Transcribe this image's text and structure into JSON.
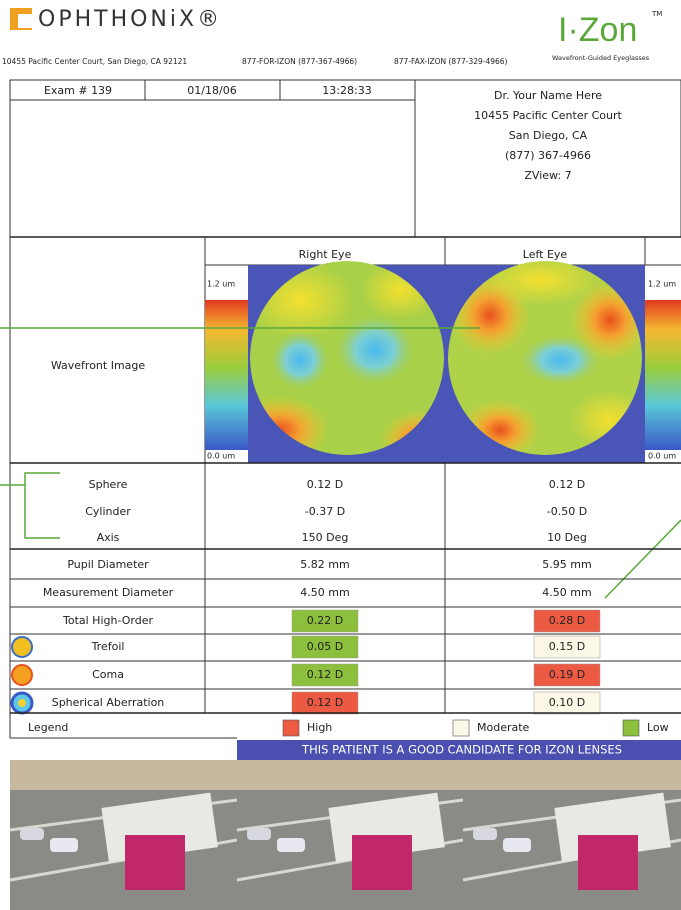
{
  "header": {
    "brand": "OPHTHONiX®",
    "address": "10455 Pacific Center Court, San Diego, CA 92121",
    "phone": "877-FOR-IZON (877-367-4966)",
    "fax": "877-FAX-IZON (877-329-4966)",
    "logo": "I·Zon",
    "logo_mark": "TM",
    "tagline": "Wavefront-Guided Eyeglasses"
  },
  "exam": {
    "number": "Exam # 139",
    "date": "01/18/06",
    "time": "13:28:33"
  },
  "doctor": [
    "Dr. Your Name Here",
    "10455 Pacific Center Court",
    "San Diego, CA",
    "(877) 367-4966",
    "ZView: 7"
  ],
  "columns": {
    "right": "Right Eye",
    "left": "Left Eye"
  },
  "wavefront": {
    "label": "Wavefront Image",
    "scale_max": "1.2 um",
    "scale_min": "0.0 um"
  },
  "rows": [
    {
      "label": "Sphere",
      "right": {
        "text": "0.12 D"
      },
      "left": {
        "text": "0.12 D"
      }
    },
    {
      "label": "Cylinder",
      "right": {
        "text": "-0.37 D"
      },
      "left": {
        "text": "-0.50 D"
      }
    },
    {
      "label": "Axis",
      "right": {
        "text": "150 Deg"
      },
      "left": {
        "text": "10 Deg"
      }
    },
    {
      "label": "Pupil Diameter",
      "right": {
        "text": "5.82 mm"
      },
      "left": {
        "text": "5.95 mm"
      }
    },
    {
      "label": "Measurement Diameter",
      "right": {
        "text": "4.50 mm"
      },
      "left": {
        "text": "4.50 mm"
      }
    },
    {
      "label": "Total High-Order",
      "right": {
        "text": "0.22 D",
        "color": "#8cbf3c"
      },
      "left": {
        "text": "0.28 D",
        "color": "#ec5a44"
      }
    },
    {
      "label": "Trefoil",
      "right": {
        "text": "0.05 D",
        "color": "#8cbf3c"
      },
      "left": {
        "text": "0.15 D",
        "color": "#fbf8e8"
      }
    },
    {
      "label": "Coma",
      "right": {
        "text": "0.12 D",
        "color": "#8cbf3c"
      },
      "left": {
        "text": "0.19 D",
        "color": "#ec5a44"
      }
    },
    {
      "label": "Spherical Aberration",
      "right": {
        "text": "0.12 D",
        "color": "#ec5a44"
      },
      "left": {
        "text": "0.10 D",
        "color": "#fbf8e8"
      }
    }
  ],
  "legend": {
    "title": "Legend",
    "items": [
      {
        "label": "High",
        "color": "#ec5a44"
      },
      {
        "label": "Moderate",
        "color": "#fbf8e8"
      },
      {
        "label": "Low",
        "color": "#8cbf3c"
      }
    ]
  },
  "banner": "THIS PATIENT IS A GOOD CANDIDATE FOR IZON LENSES"
}
